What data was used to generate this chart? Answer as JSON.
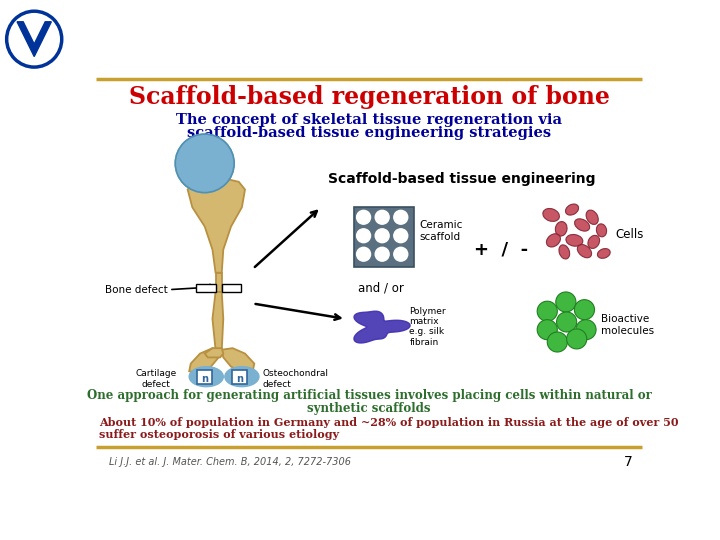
{
  "bg_color": "#ffffff",
  "title": "Scaffold-based regeneration of bone",
  "title_color": "#cc0000",
  "subtitle_line1": "The concept of skeletal tissue regeneration via",
  "subtitle_line2": "scaffold-based tissue engineering strategies",
  "subtitle_color": "#000099",
  "green_text_line1": "One approach for generating artificial tissues involves placing cells within natural or",
  "green_text_line2": "synthetic scaffolds",
  "green_color": "#2d6e2d",
  "red_text_line1": "About 10% of population in Germany and ~28% of population in Russia at the age of over 50",
  "red_text_line2": "suffer osteoporosis of various etiology",
  "red_color": "#8b1a1a",
  "citation": "Li J.J. et al. J. Mater. Chem. B, 2014, 2, 7272-7306",
  "citation_color": "#555555",
  "page_number": "7",
  "gold_color": "#c8a030",
  "bone_color": "#d4b870",
  "bone_edge": "#b89040",
  "blue_color": "#7ab0d0",
  "scaffold_gray": "#5a7080",
  "polymer_purple": "#4030b0",
  "cell_red": "#c04050",
  "bio_green": "#40b840"
}
